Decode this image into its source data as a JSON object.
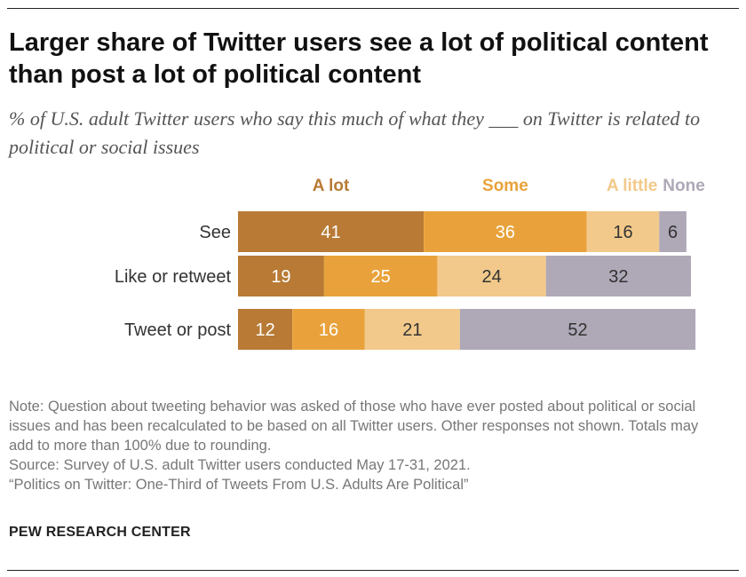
{
  "title": "Larger share of Twitter users see a lot of political content than post a lot of political content",
  "subtitle": "% of U.S. adult Twitter users who say this much of what they ___ on Twitter is related to political or social issues",
  "notes": [
    "Note: Question about tweeting behavior was asked of those who have ever posted about political or social issues and has been recalculated to be based on all Twitter users. Other responses not shown. Totals may add to more than 100% due to rounding.",
    "Source: Survey of U.S. adult Twitter users conducted May 17-31, 2021.",
    "“Politics on Twitter: One-Third of Tweets From U.S. Adults Are Political”"
  ],
  "brand": "PEW RESEARCH CENTER",
  "chart_data": {
    "type": "bar",
    "orientation": "horizontal",
    "stacked": true,
    "categories": [
      "See",
      "Like or retweet",
      "Tweet or post"
    ],
    "series": [
      {
        "name": "A lot",
        "values": [
          41,
          19,
          12
        ],
        "color": "#b87a35",
        "label_color": "#b87a35",
        "value_color": "#ffffff"
      },
      {
        "name": "Some",
        "values": [
          36,
          25,
          16
        ],
        "color": "#e9a23b",
        "label_color": "#e9a23b",
        "value_color": "#ffffff"
      },
      {
        "name": "A little",
        "values": [
          16,
          24,
          21
        ],
        "color": "#f2c98a",
        "label_color": "#f2c98a",
        "value_color": "#333333"
      },
      {
        "name": "None",
        "values": [
          6,
          32,
          52
        ],
        "color": "#aea8b7",
        "label_color": "#aea8b7",
        "value_color": "#333333"
      }
    ],
    "xlim": [
      0,
      100
    ],
    "grid": false,
    "legend": "top"
  }
}
